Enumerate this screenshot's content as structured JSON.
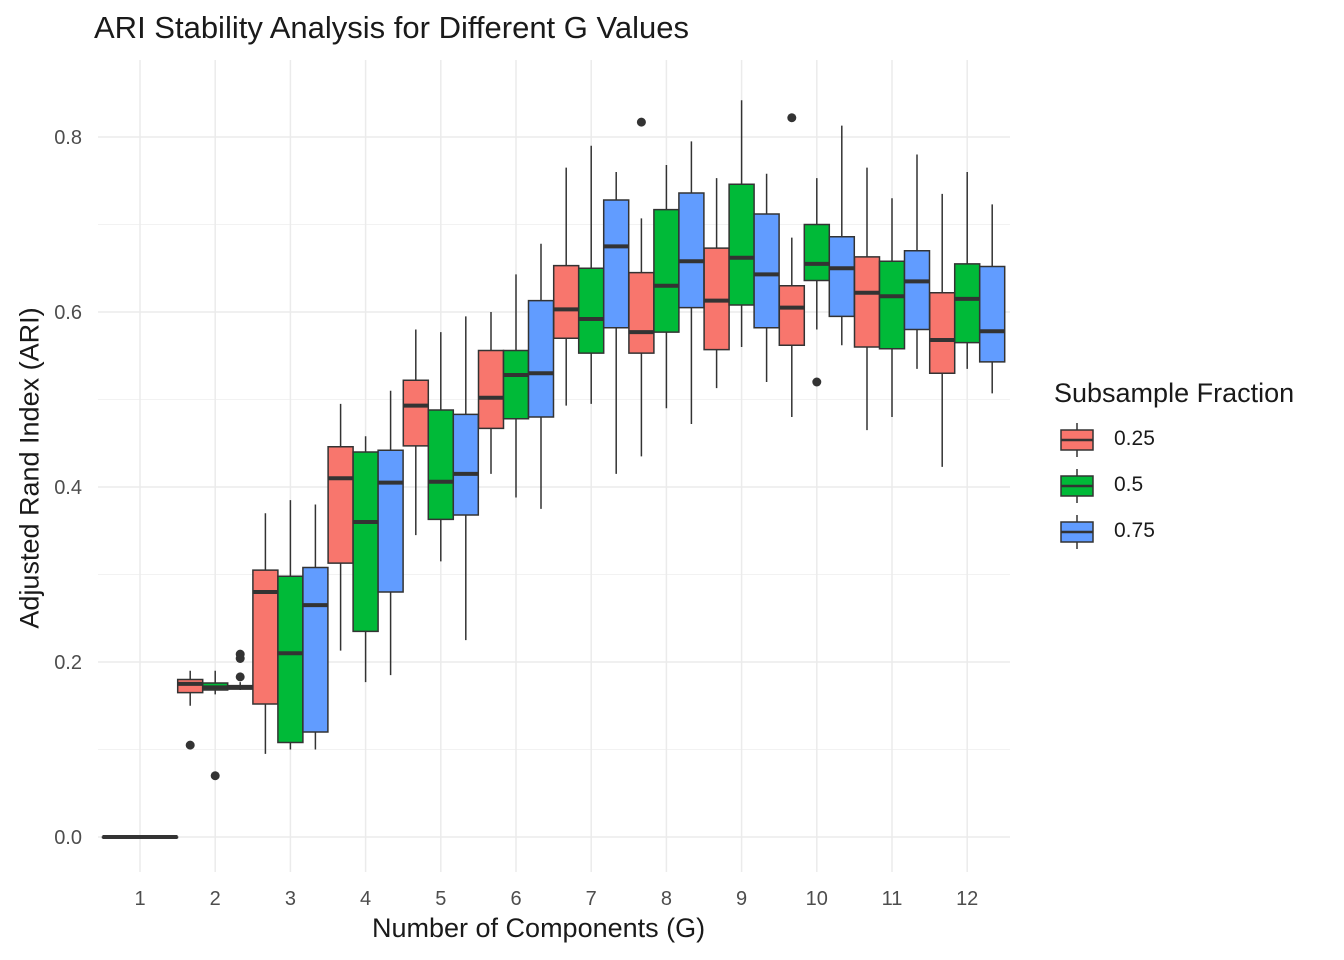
{
  "chart_data": {
    "type": "boxplot",
    "title": "ARI Stability Analysis for Different G Values",
    "xlabel": "Number of Components (G)",
    "ylabel": "Adjusted Rand Index (ARI)",
    "categories": [
      "1",
      "2",
      "3",
      "4",
      "5",
      "6",
      "7",
      "8",
      "9",
      "10",
      "11",
      "12"
    ],
    "ylim": [
      -0.04,
      0.87
    ],
    "yticks": [
      0.0,
      0.2,
      0.4,
      0.6,
      0.8
    ],
    "ytick_labels": [
      "0.0",
      "0.2",
      "0.4",
      "0.6",
      "0.8"
    ],
    "grid": true,
    "legend": {
      "title": "Subsample Fraction",
      "position": "right"
    },
    "series": [
      {
        "name": "0.25",
        "color": "#F8766D",
        "boxes": [
          {
            "min": 0.0,
            "q1": 0.0,
            "median": 0.0,
            "q3": 0.0,
            "max": 0.0,
            "outliers": []
          },
          {
            "min": 0.15,
            "q1": 0.165,
            "median": 0.175,
            "q3": 0.18,
            "max": 0.19,
            "outliers": [
              0.105
            ]
          },
          {
            "min": 0.095,
            "q1": 0.152,
            "median": 0.28,
            "q3": 0.305,
            "max": 0.37,
            "outliers": []
          },
          {
            "min": 0.213,
            "q1": 0.313,
            "median": 0.41,
            "q3": 0.446,
            "max": 0.495,
            "outliers": []
          },
          {
            "min": 0.345,
            "q1": 0.447,
            "median": 0.493,
            "q3": 0.522,
            "max": 0.58,
            "outliers": []
          },
          {
            "min": 0.415,
            "q1": 0.467,
            "median": 0.502,
            "q3": 0.556,
            "max": 0.6,
            "outliers": []
          },
          {
            "min": 0.493,
            "q1": 0.57,
            "median": 0.603,
            "q3": 0.653,
            "max": 0.765,
            "outliers": []
          },
          {
            "min": 0.435,
            "q1": 0.553,
            "median": 0.577,
            "q3": 0.645,
            "max": 0.707,
            "outliers": [
              0.817
            ]
          },
          {
            "min": 0.513,
            "q1": 0.557,
            "median": 0.613,
            "q3": 0.673,
            "max": 0.753,
            "outliers": []
          },
          {
            "min": 0.48,
            "q1": 0.562,
            "median": 0.605,
            "q3": 0.63,
            "max": 0.685,
            "outliers": [
              0.822
            ]
          },
          {
            "min": 0.465,
            "q1": 0.56,
            "median": 0.622,
            "q3": 0.663,
            "max": 0.765,
            "outliers": []
          },
          {
            "min": 0.423,
            "q1": 0.53,
            "median": 0.568,
            "q3": 0.622,
            "max": 0.735,
            "outliers": []
          }
        ]
      },
      {
        "name": "0.5",
        "color": "#00BA38",
        "boxes": [
          {
            "min": 0.0,
            "q1": 0.0,
            "median": 0.0,
            "q3": 0.0,
            "max": 0.0,
            "outliers": []
          },
          {
            "min": 0.163,
            "q1": 0.168,
            "median": 0.171,
            "q3": 0.176,
            "max": 0.19,
            "outliers": [
              0.07
            ]
          },
          {
            "min": 0.1,
            "q1": 0.108,
            "median": 0.21,
            "q3": 0.298,
            "max": 0.385,
            "outliers": []
          },
          {
            "min": 0.177,
            "q1": 0.235,
            "median": 0.36,
            "q3": 0.44,
            "max": 0.458,
            "outliers": []
          },
          {
            "min": 0.315,
            "q1": 0.363,
            "median": 0.406,
            "q3": 0.488,
            "max": 0.577,
            "outliers": []
          },
          {
            "min": 0.388,
            "q1": 0.478,
            "median": 0.528,
            "q3": 0.556,
            "max": 0.643,
            "outliers": []
          },
          {
            "min": 0.495,
            "q1": 0.553,
            "median": 0.592,
            "q3": 0.65,
            "max": 0.79,
            "outliers": []
          },
          {
            "min": 0.49,
            "q1": 0.577,
            "median": 0.63,
            "q3": 0.717,
            "max": 0.768,
            "outliers": []
          },
          {
            "min": 0.56,
            "q1": 0.608,
            "median": 0.662,
            "q3": 0.746,
            "max": 0.842,
            "outliers": []
          },
          {
            "min": 0.58,
            "q1": 0.636,
            "median": 0.655,
            "q3": 0.7,
            "max": 0.753,
            "outliers": [
              0.52
            ]
          },
          {
            "min": 0.48,
            "q1": 0.558,
            "median": 0.618,
            "q3": 0.658,
            "max": 0.73,
            "outliers": []
          },
          {
            "min": 0.535,
            "q1": 0.565,
            "median": 0.615,
            "q3": 0.655,
            "max": 0.76,
            "outliers": []
          }
        ]
      },
      {
        "name": "0.75",
        "color": "#619CFF",
        "boxes": [
          {
            "min": 0.0,
            "q1": 0.0,
            "median": 0.0,
            "q3": 0.0,
            "max": 0.0,
            "outliers": []
          },
          {
            "min": 0.168,
            "q1": 0.169,
            "median": 0.171,
            "q3": 0.173,
            "max": 0.177,
            "outliers": [
              0.183,
              0.204,
              0.209
            ]
          },
          {
            "min": 0.1,
            "q1": 0.12,
            "median": 0.265,
            "q3": 0.308,
            "max": 0.38,
            "outliers": []
          },
          {
            "min": 0.185,
            "q1": 0.28,
            "median": 0.405,
            "q3": 0.442,
            "max": 0.51,
            "outliers": []
          },
          {
            "min": 0.225,
            "q1": 0.368,
            "median": 0.415,
            "q3": 0.483,
            "max": 0.595,
            "outliers": []
          },
          {
            "min": 0.375,
            "q1": 0.48,
            "median": 0.53,
            "q3": 0.613,
            "max": 0.678,
            "outliers": []
          },
          {
            "min": 0.415,
            "q1": 0.582,
            "median": 0.675,
            "q3": 0.728,
            "max": 0.76,
            "outliers": []
          },
          {
            "min": 0.472,
            "q1": 0.605,
            "median": 0.658,
            "q3": 0.736,
            "max": 0.795,
            "outliers": []
          },
          {
            "min": 0.52,
            "q1": 0.582,
            "median": 0.643,
            "q3": 0.712,
            "max": 0.758,
            "outliers": []
          },
          {
            "min": 0.562,
            "q1": 0.595,
            "median": 0.65,
            "q3": 0.686,
            "max": 0.813,
            "outliers": []
          },
          {
            "min": 0.535,
            "q1": 0.58,
            "median": 0.635,
            "q3": 0.67,
            "max": 0.78,
            "outliers": []
          },
          {
            "min": 0.507,
            "q1": 0.543,
            "median": 0.578,
            "q3": 0.652,
            "max": 0.723,
            "outliers": []
          }
        ]
      }
    ]
  }
}
